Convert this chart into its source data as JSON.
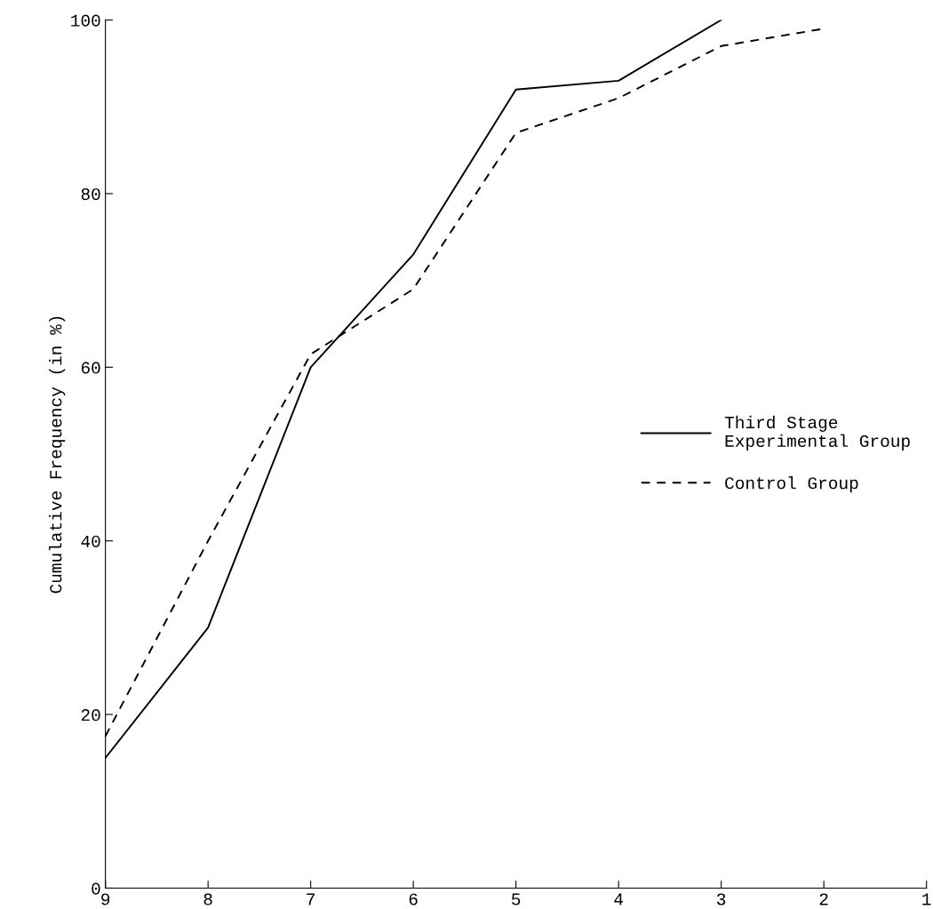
{
  "chart_data": {
    "type": "line",
    "ylabel": "Cumulative Frequency (in %)",
    "x": [
      9,
      8,
      7,
      6,
      5,
      4,
      3,
      2
    ],
    "xlim": [
      9,
      1
    ],
    "xticks": [
      9,
      8,
      7,
      6,
      5,
      4,
      3,
      2,
      1
    ],
    "ylim": [
      0,
      100
    ],
    "yticks": [
      0,
      20,
      40,
      60,
      80,
      100
    ],
    "series": [
      {
        "name": "Third Stage\nExperimental Group",
        "color": "#000000",
        "line_style": "solid",
        "values": [
          15,
          30,
          60,
          73,
          92,
          93,
          100,
          null
        ]
      },
      {
        "name": "Control Group",
        "color": "#000000",
        "line_style": "dashed",
        "values": [
          17.5,
          40,
          61.5,
          69,
          87,
          91,
          97,
          99
        ]
      }
    ],
    "legend": "right",
    "grid": false,
    "marker": "none"
  }
}
